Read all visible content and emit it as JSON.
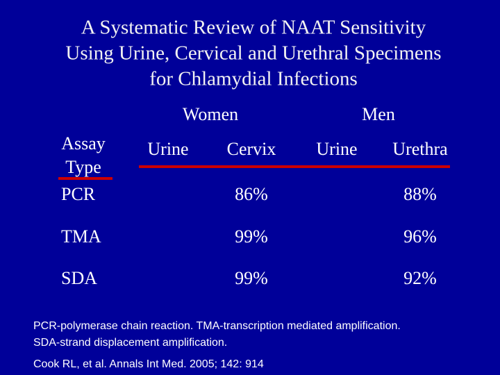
{
  "title": [
    "A Systematic Review of NAAT Sensitivity",
    "Using Urine, Cervical and Urethral Specimens",
    "for Chlamydial Infections"
  ],
  "table": {
    "groups": [
      "Women",
      "Men"
    ],
    "header": [
      "Assay",
      "Type",
      "Urine",
      "Cervix",
      "Urine",
      "Urethra"
    ],
    "rows": [
      [
        "PCR",
        "86%",
        "88%"
      ],
      [
        "TMA",
        "99%",
        "96%"
      ],
      [
        "SDA",
        "99%",
        "92%"
      ]
    ]
  },
  "footnotes": [
    "PCR-polymerase chain reaction. TMA-transcription mediated amplification.",
    "SDA-strand displacement amplification."
  ],
  "citation": "Cook RL, et al. Annals Int Med. 2005; 142: 914"
}
